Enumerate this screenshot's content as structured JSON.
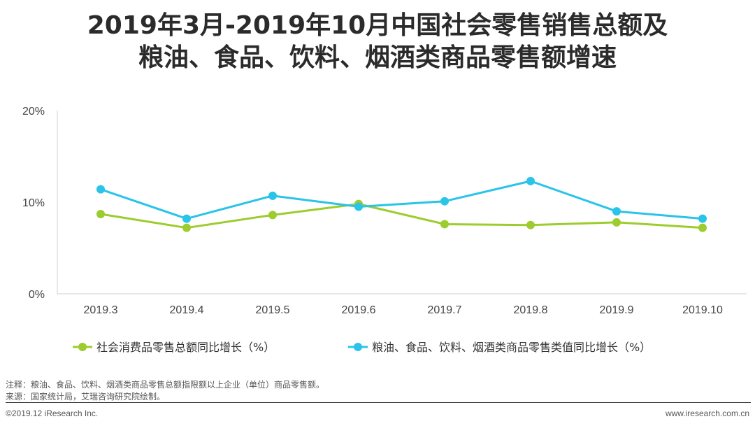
{
  "title_line1": "2019年3月-2019年10月中国社会零售销售总额及",
  "title_line2": "粮油、食品、饮料、烟酒类商品零售额增速",
  "notes": {
    "line1": "注释：粮油、食品、饮料、烟酒类商品零售总额指限额以上企业（单位）商品零售额。",
    "line2": "来源：国家统计局，艾瑞咨询研究院绘制。"
  },
  "footer": {
    "copyright": "©2019.12 iResearch Inc.",
    "website": "www.iresearch.com.cn"
  },
  "chart_data": {
    "type": "line",
    "categories": [
      "2019.3",
      "2019.4",
      "2019.5",
      "2019.6",
      "2019.7",
      "2019.8",
      "2019.9",
      "2019.10"
    ],
    "y_ticks": [
      "0%",
      "10%",
      "20%"
    ],
    "ylim": [
      0,
      20
    ],
    "grid": false,
    "legend_position": "bottom",
    "series": [
      {
        "name": "社会消费品零售总额同比增长（%）",
        "color": "#9ccc2e",
        "values": [
          8.7,
          7.2,
          8.6,
          9.8,
          7.6,
          7.5,
          7.8,
          7.2
        ]
      },
      {
        "name": "粮油、食品、饮料、烟酒类商品零售类值同比增长（%）",
        "color": "#29c4e8",
        "values": [
          11.4,
          8.2,
          10.7,
          9.5,
          10.1,
          12.3,
          9.0,
          8.2
        ]
      }
    ]
  }
}
